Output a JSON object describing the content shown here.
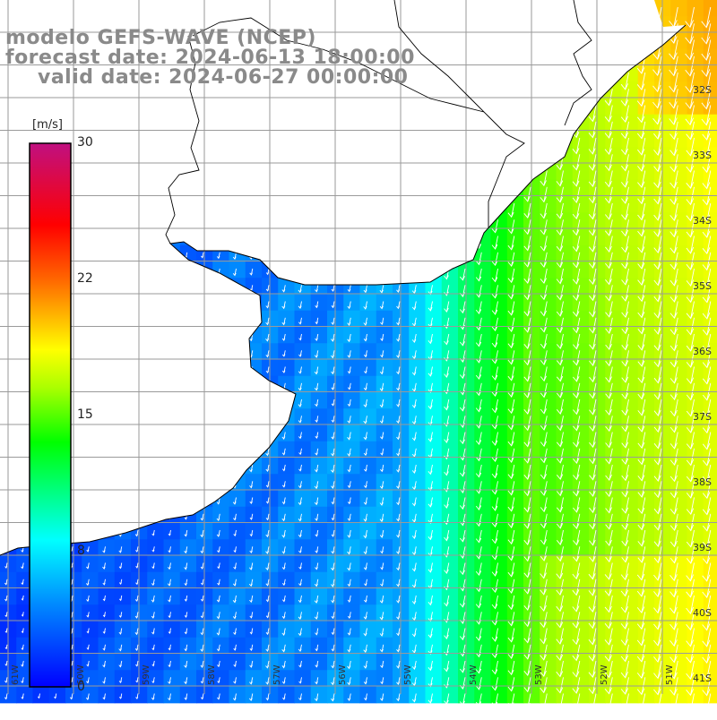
{
  "title": {
    "line1": "modelo GEFS-WAVE (NCEP)",
    "line2": "forecast date: 2024-06-13 18:00:00",
    "line3": "valid date: 2024-06-27 00:00:00"
  },
  "colorbar": {
    "unit": "[m/s]",
    "ticks": [
      "30",
      "22",
      "15",
      "8",
      "0"
    ],
    "colors": [
      "#0000ff",
      "#00aaff",
      "#00ffff",
      "#00ff00",
      "#ffff00",
      "#ff8800",
      "#ff0000",
      "#c01080"
    ]
  },
  "axes": {
    "lat_labels": [
      "32S",
      "33S",
      "34S",
      "35S",
      "36S",
      "37S",
      "38S",
      "39S",
      "40S",
      "41S"
    ],
    "lon_labels": [
      "61W",
      "60W",
      "59W",
      "58W",
      "57W",
      "56W",
      "55W",
      "54W",
      "53W",
      "52W",
      "51W"
    ]
  },
  "map": {
    "land_color": "#ffffff",
    "coast_color": "#000000",
    "grid_color": "#9a9a9a",
    "speed_range": [
      0,
      30
    ],
    "arrow_direction": "southward"
  }
}
